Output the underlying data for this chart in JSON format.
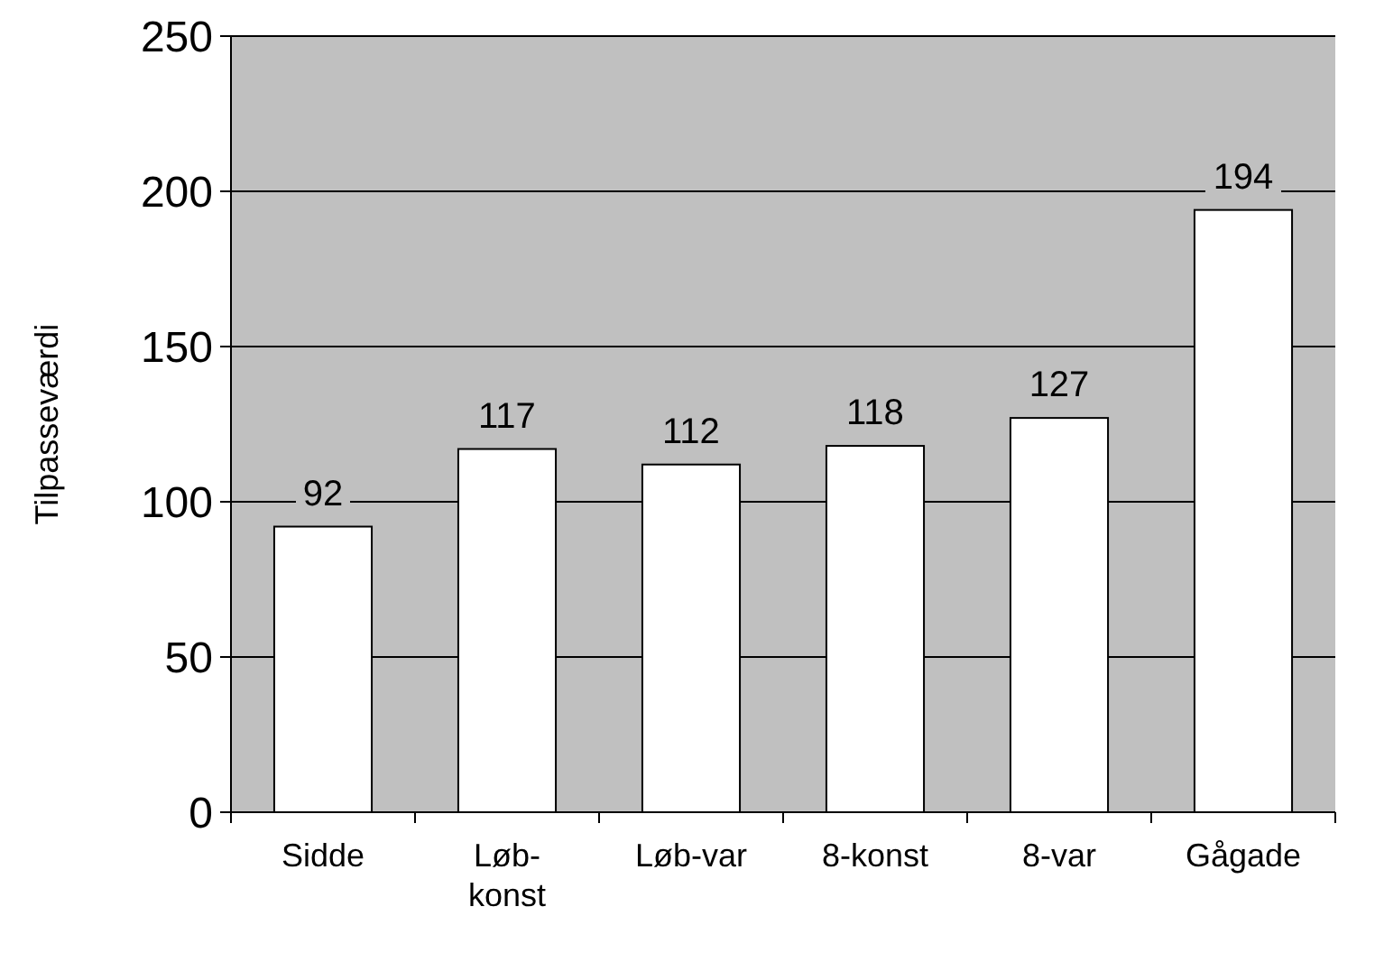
{
  "chart_data": {
    "type": "bar",
    "ylabel": "Tilpasseværdi",
    "categories": [
      "Sidde",
      "Løb-konst",
      "Løb-var",
      "8-konst",
      "8-var",
      "Gågade"
    ],
    "values": [
      92,
      117,
      112,
      118,
      127,
      194
    ],
    "color": "#ffffff",
    "ylim": [
      0,
      250
    ],
    "yticks": [
      0,
      50,
      100,
      150,
      200,
      250
    ],
    "grid": "y",
    "data_labels": true
  }
}
